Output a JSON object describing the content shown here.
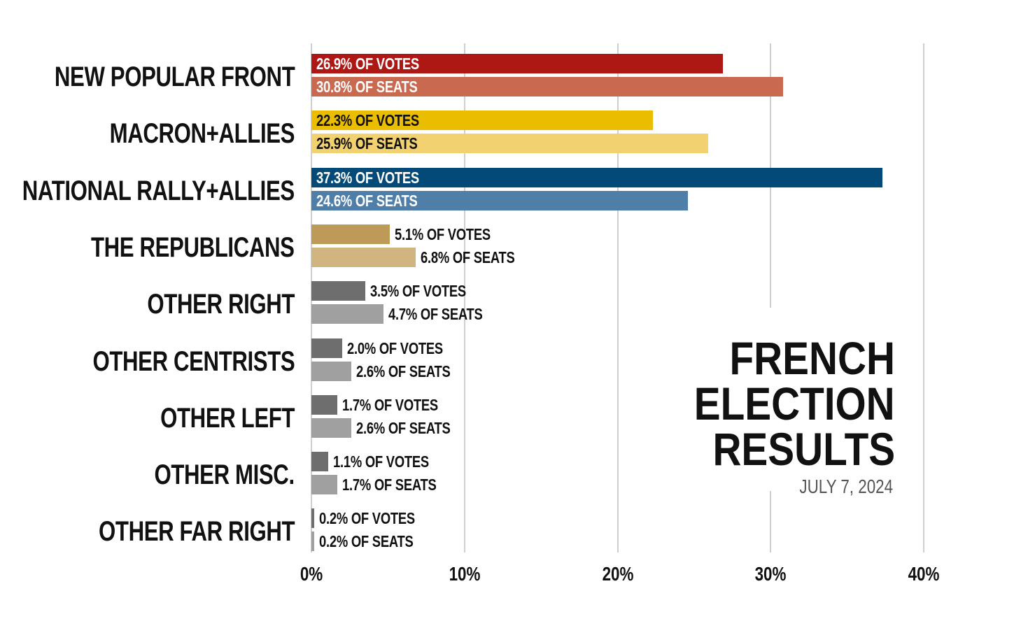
{
  "chart_data": {
    "type": "bar",
    "orientation": "horizontal",
    "title": "FRENCH ELECTION RESULTS",
    "title_lines": [
      "FRENCH",
      "ELECTION",
      "RESULTS"
    ],
    "subtitle": "JULY 7, 2024",
    "categories": [
      "NEW POPULAR FRONT",
      "MACRON+ALLIES",
      "NATIONAL RALLY+ALLIES",
      "THE REPUBLICANS",
      "OTHER RIGHT",
      "OTHER CENTRISTS",
      "OTHER LEFT",
      "OTHER MISC.",
      "OTHER FAR RIGHT"
    ],
    "series": [
      {
        "name": "Votes",
        "suffix": "% OF VOTES",
        "values": [
          26.9,
          22.3,
          37.3,
          5.1,
          3.5,
          2.0,
          1.7,
          1.1,
          0.2
        ],
        "colors": [
          "#ad1714",
          "#ebbd00",
          "#034a78",
          "#bd9a57",
          "#6e6e6e",
          "#6e6e6e",
          "#6e6e6e",
          "#6e6e6e",
          "#6e6e6e"
        ],
        "label_colors": [
          "#ffffff",
          "#111111",
          "#ffffff"
        ]
      },
      {
        "name": "Seats",
        "suffix": "% OF SEATS",
        "values": [
          30.8,
          25.9,
          24.6,
          6.8,
          4.7,
          2.6,
          2.6,
          1.7,
          0.2
        ],
        "colors": [
          "#c96a50",
          "#f2d270",
          "#4f7fa8",
          "#d0b581",
          "#a0a0a0",
          "#a0a0a0",
          "#a0a0a0",
          "#a0a0a0",
          "#a0a0a0"
        ],
        "label_colors": [
          "#ffffff",
          "#111111",
          "#ffffff"
        ]
      }
    ],
    "xlim": [
      0,
      40
    ],
    "xticks": [
      "0%",
      "10%",
      "20%",
      "30%",
      "40%"
    ],
    "grid": true,
    "legend": "none"
  }
}
